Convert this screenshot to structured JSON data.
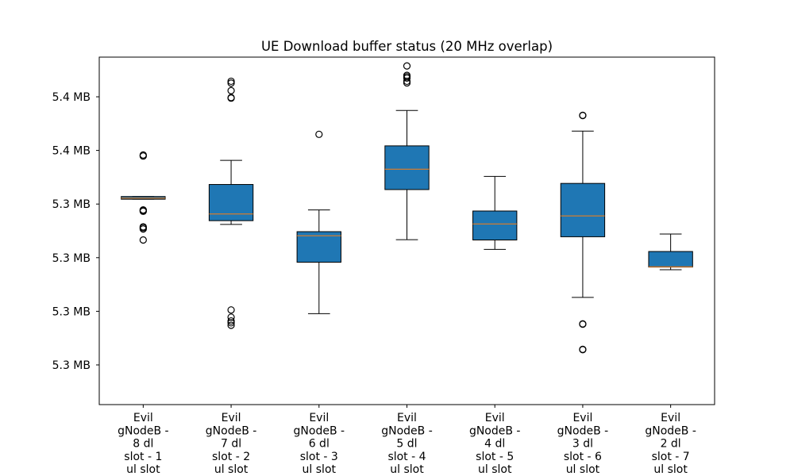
{
  "chart_data": {
    "type": "box",
    "title": "UE Download buffer status (20 MHz overlap)",
    "xlabel": "",
    "ylabel": "",
    "ylim": [
      5.2652,
      5.3948
    ],
    "grid": false,
    "legend": "none",
    "yticks": [
      {
        "value": 5.28,
        "label": "5.3 MB"
      },
      {
        "value": 5.3,
        "label": "5.3 MB"
      },
      {
        "value": 5.32,
        "label": "5.3 MB"
      },
      {
        "value": 5.34,
        "label": "5.3 MB"
      },
      {
        "value": 5.36,
        "label": "5.4 MB"
      },
      {
        "value": 5.38,
        "label": "5.4 MB"
      }
    ],
    "categories": [
      [
        "Evil",
        "gNodeB -",
        "8 dl",
        "slot - 1",
        "ul slot"
      ],
      [
        "Evil",
        "gNodeB -",
        "7 dl",
        "slot - 2",
        "ul slot"
      ],
      [
        "Evil",
        "gNodeB -",
        "6 dl",
        "slot - 3",
        "ul slot"
      ],
      [
        "Evil",
        "gNodeB -",
        "5 dl",
        "slot - 4",
        "ul slot"
      ],
      [
        "Evil",
        "gNodeB -",
        "4 dl",
        "slot - 5",
        "ul slot"
      ],
      [
        "Evil",
        "gNodeB -",
        "3 dl",
        "slot - 6",
        "ul slot"
      ],
      [
        "Evil",
        "gNodeB -",
        "2 dl",
        "slot - 7",
        "ul slot"
      ]
    ],
    "colors": {
      "box_fill": "#1f77b4",
      "median": "#ff7f0e",
      "line": "#000000"
    },
    "boxes": [
      {
        "whislo": 5.3418,
        "q1": 5.3418,
        "med": 5.3422,
        "q3": 5.3428,
        "whishi": 5.3428,
        "fliers": [
          5.3583,
          5.3579,
          5.3378,
          5.3373,
          5.3375,
          5.3315,
          5.3312,
          5.3307,
          5.3266
        ]
      },
      {
        "whislo": 5.3324,
        "q1": 5.3338,
        "med": 5.3363,
        "q3": 5.3473,
        "whishi": 5.3563,
        "fliers": [
          5.3858,
          5.3851,
          5.3823,
          5.3797,
          5.3795,
          5.3005,
          5.2978,
          5.2964,
          5.2957,
          5.2948
        ]
      },
      {
        "whislo": 5.2991,
        "q1": 5.3183,
        "med": 5.3282,
        "q3": 5.3297,
        "whishi": 5.3378,
        "fliers": [
          5.366
        ]
      },
      {
        "whislo": 5.3267,
        "q1": 5.3454,
        "med": 5.353,
        "q3": 5.3617,
        "whishi": 5.3749,
        "fliers": [
          5.3915,
          5.388,
          5.3875,
          5.387,
          5.3858,
          5.3852
        ]
      },
      {
        "whislo": 5.3231,
        "q1": 5.3266,
        "med": 5.3326,
        "q3": 5.3374,
        "whishi": 5.3503,
        "fliers": []
      },
      {
        "whislo": 5.3052,
        "q1": 5.3278,
        "med": 5.3356,
        "q3": 5.3477,
        "whishi": 5.3672,
        "fliers": [
          5.3731,
          5.373,
          5.2953,
          5.2952,
          5.2858,
          5.2857
        ]
      },
      {
        "whislo": 5.3155,
        "q1": 5.3165,
        "med": 5.3166,
        "q3": 5.3223,
        "whishi": 5.3288,
        "fliers": []
      }
    ]
  }
}
